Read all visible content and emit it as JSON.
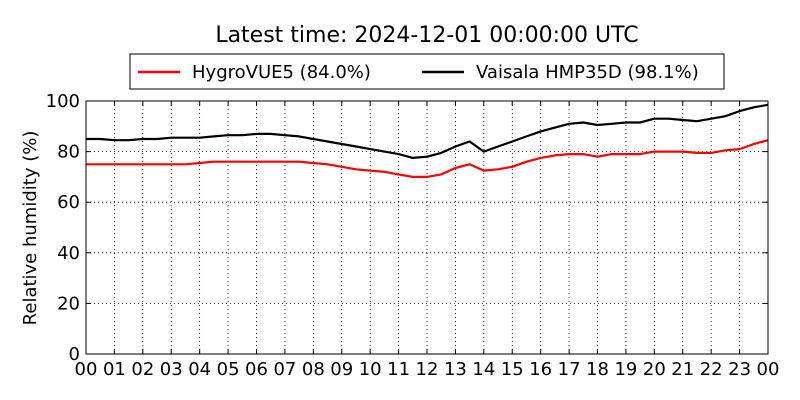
{
  "chart_data": {
    "type": "line",
    "title": "Latest time: 2024-12-01 00:00:00 UTC",
    "xlabel": "",
    "ylabel": "Relative humidity (%)",
    "ylim": [
      0,
      100
    ],
    "yticks": [
      0,
      20,
      40,
      60,
      80,
      100
    ],
    "xlim": [
      0,
      24
    ],
    "xtick_labels": [
      "00",
      "01",
      "02",
      "03",
      "04",
      "05",
      "06",
      "07",
      "08",
      "09",
      "10",
      "11",
      "12",
      "13",
      "14",
      "15",
      "16",
      "17",
      "18",
      "19",
      "20",
      "21",
      "22",
      "23",
      "00"
    ],
    "grid": true,
    "legend_position": "top-center",
    "series": [
      {
        "name": "HygroVUE5 (84.0%)",
        "color": "#ff0000",
        "x": [
          0,
          0.5,
          1,
          1.5,
          2,
          2.5,
          3,
          3.5,
          4,
          4.5,
          5,
          5.5,
          6,
          6.5,
          7,
          7.5,
          8,
          8.5,
          9,
          9.5,
          10,
          10.5,
          11,
          11.5,
          12,
          12.5,
          13,
          13.5,
          14,
          14.5,
          15,
          15.5,
          16,
          16.5,
          17,
          17.5,
          18,
          18.5,
          19,
          19.5,
          20,
          20.5,
          21,
          21.5,
          22,
          22.5,
          23,
          23.5,
          24
        ],
        "y": [
          75,
          75,
          75,
          75,
          75,
          75,
          75,
          75,
          75.5,
          76,
          76,
          76,
          76,
          76,
          76,
          76,
          75.5,
          75,
          74,
          73,
          72.5,
          72,
          71,
          70,
          70,
          71,
          73.5,
          75,
          72.5,
          73,
          74,
          76,
          77.5,
          78.5,
          79,
          79,
          78,
          79,
          79,
          79,
          80,
          80,
          80,
          79.5,
          79.5,
          80.5,
          81,
          83,
          84.5
        ]
      },
      {
        "name": "Vaisala HMP35D (98.1%)",
        "color": "#000000",
        "x": [
          0,
          0.5,
          1,
          1.5,
          2,
          2.5,
          3,
          3.5,
          4,
          4.5,
          5,
          5.5,
          6,
          6.5,
          7,
          7.5,
          8,
          8.5,
          9,
          9.5,
          10,
          10.5,
          11,
          11.5,
          12,
          12.5,
          13,
          13.5,
          14,
          14.5,
          15,
          15.5,
          16,
          16.5,
          17,
          17.5,
          18,
          18.5,
          19,
          19.5,
          20,
          20.5,
          21,
          21.5,
          22,
          22.5,
          23,
          23.5,
          24
        ],
        "y": [
          85,
          85,
          84.5,
          84.5,
          85,
          85,
          85.5,
          85.5,
          85.5,
          86,
          86.5,
          86.5,
          87,
          87,
          86.5,
          86,
          85,
          84,
          83,
          82,
          81,
          80,
          79,
          77.5,
          78,
          79.5,
          82,
          84,
          80,
          82,
          84,
          86,
          88,
          89.5,
          91,
          91.5,
          90.5,
          91,
          91.5,
          91.5,
          93,
          93,
          92.5,
          92,
          93,
          94,
          96,
          97.5,
          98.5
        ]
      }
    ]
  }
}
